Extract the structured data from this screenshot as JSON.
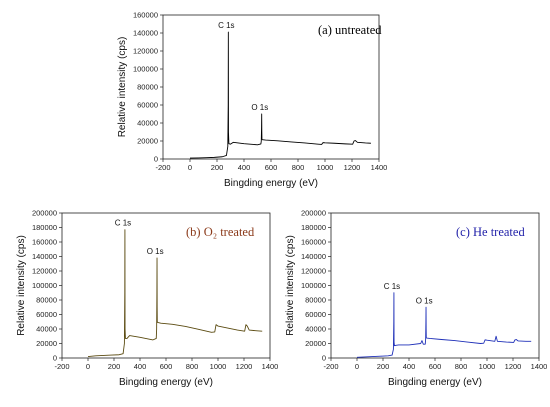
{
  "chart_data": [
    {
      "type": "line",
      "title": "(a) untreated",
      "title_color": "#000000",
      "line_color": "#000000",
      "xlabel": "Bingding energy (eV)",
      "ylabel": "Relative intensity (cps)",
      "xlim": [
        -200,
        1400
      ],
      "ylim": [
        0,
        160000
      ],
      "xticks": [
        "-200",
        "0",
        "200",
        "400",
        "600",
        "800",
        "1000",
        "1200",
        "1400"
      ],
      "yticks": [
        "0",
        "20000",
        "40000",
        "60000",
        "80000",
        "100000",
        "120000",
        "140000",
        "160000"
      ],
      "annotations": [
        {
          "text": "C 1s",
          "x": 284,
          "y": 141000
        },
        {
          "text": "O 1s",
          "x": 532,
          "y": 50000
        }
      ],
      "series": [
        {
          "x": [
            0,
            60,
            120,
            180,
            240,
            270,
            280,
            283,
            284,
            285,
            288,
            300,
            320,
            400,
            500,
            525,
            528,
            530,
            531,
            532,
            533,
            536,
            560,
            650,
            750,
            850,
            950,
            975,
            985,
            1000,
            1070,
            1150,
            1205,
            1215,
            1225,
            1240,
            1300,
            1340
          ],
          "y": [
            1000,
            1200,
            1500,
            1800,
            2500,
            4000,
            14000,
            60000,
            141000,
            30000,
            17000,
            16500,
            18500,
            17000,
            15800,
            16800,
            20000,
            35000,
            50000,
            30000,
            22000,
            21500,
            21000,
            20200,
            19000,
            17800,
            16500,
            16200,
            18200,
            18000,
            17500,
            16800,
            16500,
            20000,
            20500,
            18500,
            17800,
            17500
          ]
        }
      ]
    },
    {
      "type": "line",
      "title": "(b) O₂ treated",
      "title_color": "#8b3a1a",
      "line_color": "#5a4a10",
      "xlabel": "Bingding energy (eV)",
      "ylabel": "Relative intensity (cps)",
      "xlim": [
        -200,
        1400
      ],
      "ylim": [
        0,
        200000
      ],
      "xticks": [
        "-200",
        "0",
        "200",
        "400",
        "600",
        "800",
        "1000",
        "1200",
        "1400"
      ],
      "yticks": [
        "0",
        "20000",
        "40000",
        "60000",
        "80000",
        "100000",
        "120000",
        "140000",
        "160000",
        "180000",
        "200000"
      ],
      "annotations": [
        {
          "text": "C 1s",
          "x": 284,
          "y": 177000
        },
        {
          "text": "O 1s",
          "x": 532,
          "y": 138000
        }
      ],
      "series": [
        {
          "x": [
            0,
            60,
            120,
            180,
            240,
            270,
            280,
            283,
            284,
            285,
            288,
            300,
            320,
            400,
            500,
            525,
            528,
            530,
            531,
            532,
            533,
            536,
            560,
            650,
            750,
            850,
            950,
            975,
            985,
            1000,
            1070,
            1150,
            1205,
            1215,
            1225,
            1240,
            1300,
            1340
          ],
          "y": [
            2000,
            3000,
            3500,
            4000,
            4500,
            6000,
            20000,
            90000,
            177000,
            40000,
            27000,
            27000,
            31000,
            28500,
            25000,
            27000,
            40000,
            90000,
            138000,
            70000,
            50000,
            49000,
            48000,
            46500,
            43500,
            39500,
            35500,
            36000,
            46000,
            44000,
            41500,
            38500,
            37000,
            46000,
            44000,
            38500,
            37500,
            37000
          ]
        }
      ]
    },
    {
      "type": "line",
      "title": "(c) He treated",
      "title_color": "#1f1fa8",
      "line_color": "#1e2fb8",
      "xlabel": "Bingding energy (eV)",
      "ylabel": "Relative intensity (cps)",
      "xlim": [
        -200,
        1400
      ],
      "ylim": [
        0,
        200000
      ],
      "xticks": [
        "-200",
        "0",
        "200",
        "400",
        "600",
        "800",
        "1000",
        "1200",
        "1400"
      ],
      "yticks": [
        "0",
        "20000",
        "40000",
        "60000",
        "80000",
        "100000",
        "120000",
        "140000",
        "160000",
        "180000",
        "200000"
      ],
      "annotations": [
        {
          "text": "C 1s",
          "x": 284,
          "y": 90000
        },
        {
          "text": "O 1s",
          "x": 532,
          "y": 70000
        }
      ],
      "series": [
        {
          "x": [
            0,
            60,
            120,
            180,
            240,
            270,
            280,
            283,
            284,
            285,
            288,
            300,
            320,
            400,
            490,
            500,
            510,
            525,
            528,
            530,
            531,
            532,
            533,
            536,
            560,
            650,
            750,
            850,
            950,
            975,
            985,
            1000,
            1060,
            1070,
            1080,
            1150,
            1205,
            1215,
            1225,
            1240,
            1300,
            1340
          ],
          "y": [
            1000,
            1500,
            2000,
            2500,
            3000,
            4000,
            12000,
            50000,
            90000,
            22000,
            17000,
            17500,
            18000,
            18000,
            20000,
            24000,
            19000,
            19000,
            26000,
            50000,
            70000,
            40000,
            28000,
            27500,
            27000,
            25500,
            24000,
            22000,
            20000,
            20500,
            25000,
            24500,
            23000,
            30000,
            23000,
            22000,
            21500,
            25000,
            25500,
            23500,
            23000,
            23000
          ]
        }
      ]
    }
  ]
}
